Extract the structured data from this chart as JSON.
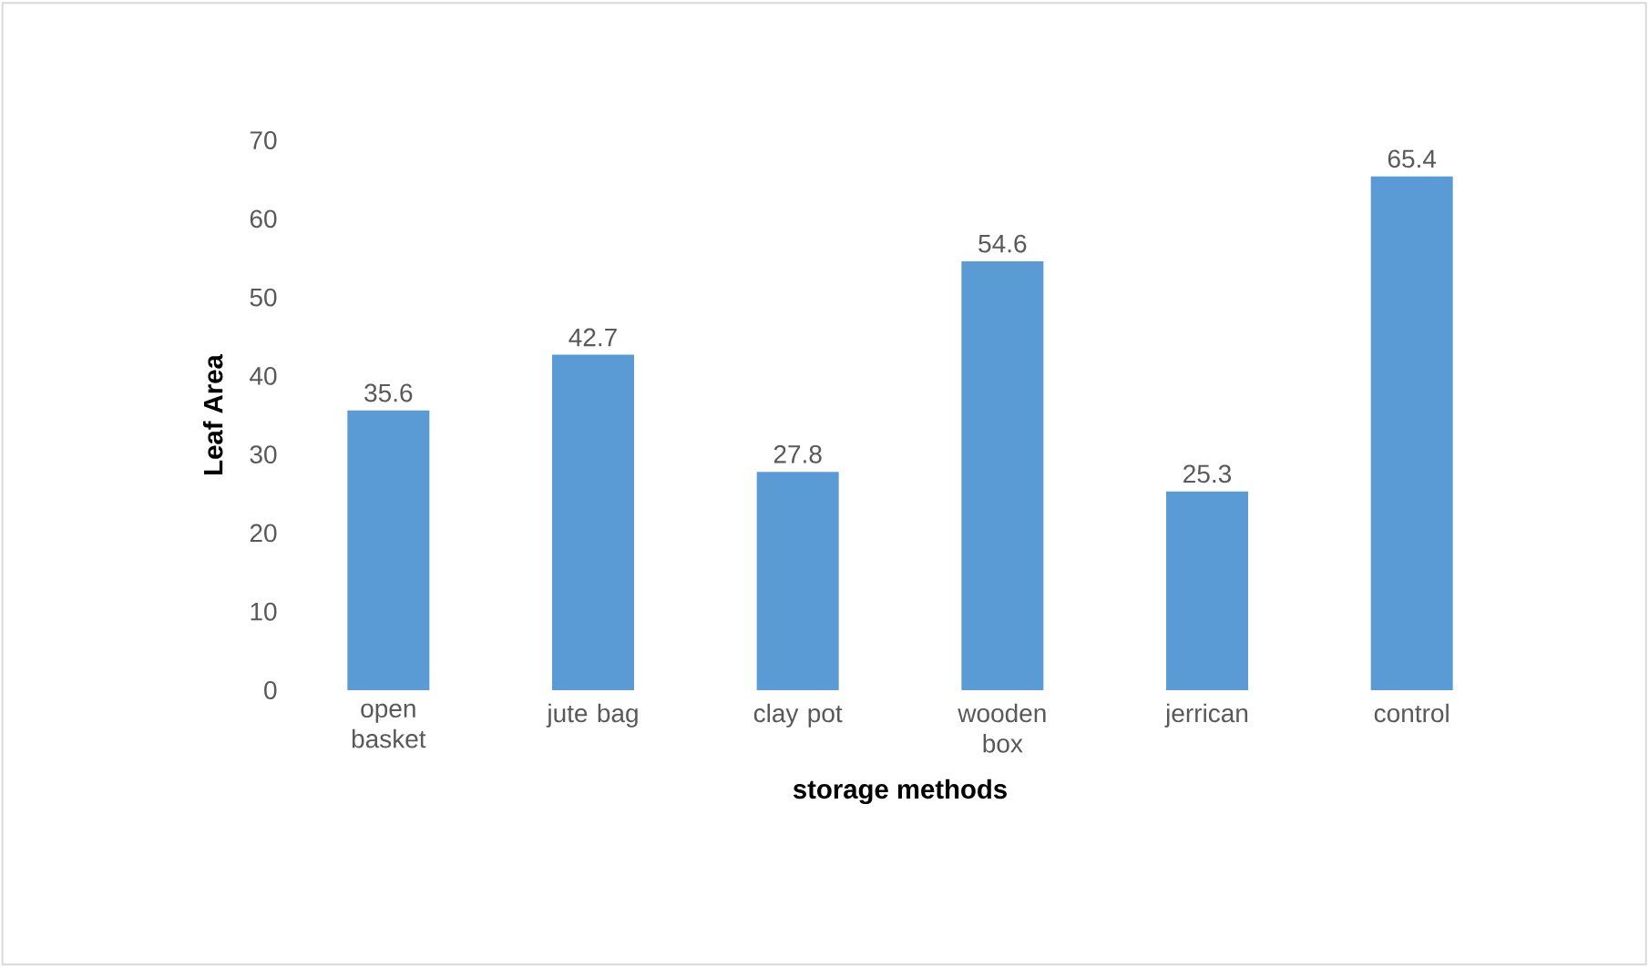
{
  "chart_data": {
    "type": "bar",
    "xlabel": "storage methods",
    "ylabel": "Leaf Area",
    "categories": [
      "open basket",
      "jute bag",
      "clay pot",
      "wooden box",
      "jerrican",
      "control"
    ],
    "values": [
      35.6,
      42.7,
      27.8,
      54.6,
      25.3,
      65.4
    ],
    "color": "#5b9bd5",
    "ylim": [
      0,
      70
    ],
    "yticks": [
      0,
      10,
      20,
      30,
      40,
      50,
      60,
      70
    ],
    "data_labels": true
  }
}
